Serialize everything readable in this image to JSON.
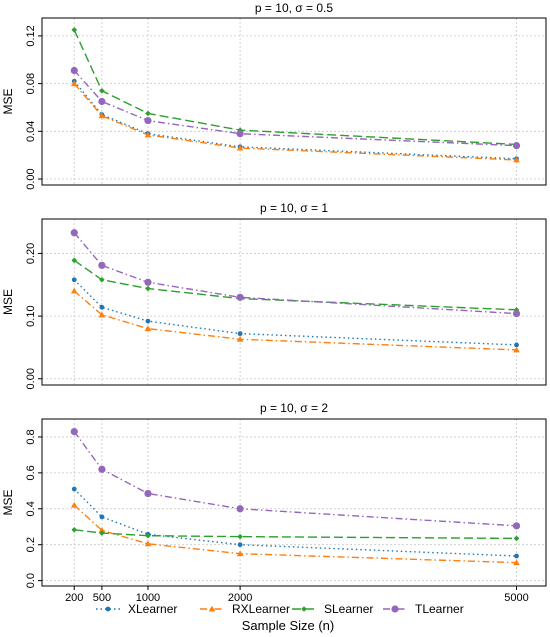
{
  "chart_data": {
    "type": "line",
    "xlabel": "Sample Size (n)",
    "x_ticks": [
      200,
      500,
      1000,
      2000,
      5000
    ],
    "x": [
      200,
      500,
      1000,
      2000,
      5000
    ],
    "grid": true,
    "legend": "bottom",
    "series_styles": [
      {
        "name": "XLearner",
        "color": "#1f77b4",
        "dash": "1.5,3",
        "marker": "circle"
      },
      {
        "name": "RXLearner",
        "color": "#ff7f0e",
        "dash": "7,3,1.5,3",
        "marker": "triangle"
      },
      {
        "name": "SLearner",
        "color": "#2ca02c",
        "dash": "9,4",
        "marker": "diamond"
      },
      {
        "name": "TLearner",
        "color": "#9467bd",
        "dash": "7,3,1.5,3",
        "marker": "circle-large"
      }
    ],
    "panels": [
      {
        "title": "p = 10, σ = 0.5",
        "ylabel": "MSE",
        "ylim": [
          -0.005,
          0.135
        ],
        "y_ticks": [
          0.0,
          0.04,
          0.08,
          0.12
        ],
        "y_tick_labels": [
          "0.00",
          "0.04",
          "0.08",
          "0.12"
        ],
        "series": [
          {
            "name": "XLearner",
            "values": [
              0.082,
              0.054,
              0.038,
              0.027,
              0.017
            ]
          },
          {
            "name": "RXLearner",
            "values": [
              0.08,
              0.053,
              0.037,
              0.026,
              0.016
            ]
          },
          {
            "name": "SLearner",
            "values": [
              0.125,
              0.074,
              0.055,
              0.041,
              0.029
            ]
          },
          {
            "name": "TLearner",
            "values": [
              0.091,
              0.065,
              0.049,
              0.038,
              0.028
            ]
          }
        ]
      },
      {
        "title": "p = 10, σ = 1",
        "ylabel": "MSE",
        "ylim": [
          -0.01,
          0.255
        ],
        "y_ticks": [
          0.0,
          0.1,
          0.2
        ],
        "y_tick_labels": [
          "0.00",
          "0.10",
          "0.20"
        ],
        "series": [
          {
            "name": "XLearner",
            "values": [
              0.158,
              0.114,
              0.092,
              0.072,
              0.054
            ]
          },
          {
            "name": "RXLearner",
            "values": [
              0.14,
              0.102,
              0.08,
              0.063,
              0.046
            ]
          },
          {
            "name": "SLearner",
            "values": [
              0.189,
              0.158,
              0.144,
              0.128,
              0.11
            ]
          },
          {
            "name": "TLearner",
            "values": [
              0.233,
              0.181,
              0.154,
              0.13,
              0.104
            ]
          }
        ]
      },
      {
        "title": "p = 10, σ = 2",
        "ylabel": "MSE",
        "ylim": [
          -0.03,
          0.9
        ],
        "y_ticks": [
          0.0,
          0.2,
          0.4,
          0.6,
          0.8
        ],
        "y_tick_labels": [
          "0.0",
          "0.2",
          "0.4",
          "0.6",
          "0.8"
        ],
        "series": [
          {
            "name": "XLearner",
            "values": [
              0.51,
              0.355,
              0.258,
              0.2,
              0.137
            ]
          },
          {
            "name": "RXLearner",
            "values": [
              0.42,
              0.28,
              0.205,
              0.15,
              0.1
            ]
          },
          {
            "name": "SLearner",
            "values": [
              0.283,
              0.265,
              0.25,
              0.245,
              0.235
            ]
          },
          {
            "name": "TLearner",
            "values": [
              0.83,
              0.62,
              0.485,
              0.4,
              0.305
            ]
          }
        ]
      }
    ]
  }
}
